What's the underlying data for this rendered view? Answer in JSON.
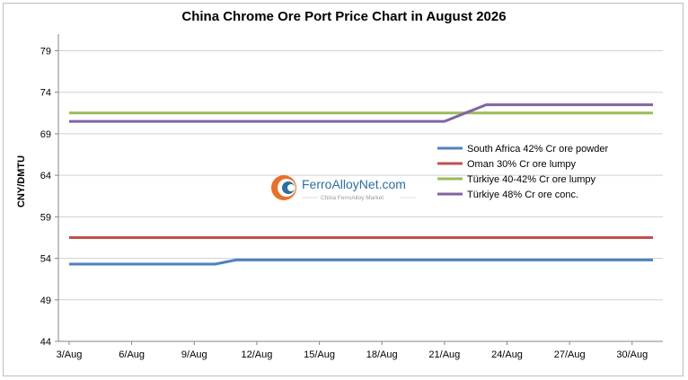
{
  "chart_data": {
    "type": "line",
    "title": "China Chrome Ore Port Price Chart in August 2026",
    "ylabel": "CNY/DMTU",
    "xlabel": "",
    "ylim": [
      44,
      81
    ],
    "yticks": [
      44,
      49,
      54,
      59,
      64,
      69,
      74,
      79
    ],
    "categories": [
      "3/Aug",
      "4/Aug",
      "5/Aug",
      "6/Aug",
      "7/Aug",
      "8/Aug",
      "9/Aug",
      "10/Aug",
      "11/Aug",
      "12/Aug",
      "13/Aug",
      "14/Aug",
      "15/Aug",
      "16/Aug",
      "17/Aug",
      "18/Aug",
      "19/Aug",
      "20/Aug",
      "21/Aug",
      "22/Aug",
      "23/Aug",
      "24/Aug",
      "25/Aug",
      "26/Aug",
      "27/Aug",
      "28/Aug",
      "29/Aug",
      "30/Aug",
      "31/Aug"
    ],
    "xtick_labels": [
      "3/Aug",
      "6/Aug",
      "9/Aug",
      "12/Aug",
      "15/Aug",
      "18/Aug",
      "21/Aug",
      "24/Aug",
      "27/Aug",
      "30/Aug"
    ],
    "grid": true,
    "legend_position": "right",
    "series": [
      {
        "name": "South Africa 42% Cr ore powder",
        "color": "#4f81bd",
        "values": [
          53.3,
          53.3,
          53.3,
          53.3,
          53.3,
          53.3,
          53.3,
          53.3,
          53.8,
          53.8,
          53.8,
          53.8,
          53.8,
          53.8,
          53.8,
          53.8,
          53.8,
          53.8,
          53.8,
          53.8,
          53.8,
          53.8,
          53.8,
          53.8,
          53.8,
          53.8,
          53.8,
          53.8,
          53.8
        ]
      },
      {
        "name": "Oman 30% Cr ore lumpy",
        "color": "#c0504d",
        "values": [
          56.5,
          56.5,
          56.5,
          56.5,
          56.5,
          56.5,
          56.5,
          56.5,
          56.5,
          56.5,
          56.5,
          56.5,
          56.5,
          56.5,
          56.5,
          56.5,
          56.5,
          56.5,
          56.5,
          56.5,
          56.5,
          56.5,
          56.5,
          56.5,
          56.5,
          56.5,
          56.5,
          56.5,
          56.5
        ]
      },
      {
        "name": "Türkiye 40-42% Cr ore lumpy",
        "color": "#9bbb59",
        "values": [
          71.5,
          71.5,
          71.5,
          71.5,
          71.5,
          71.5,
          71.5,
          71.5,
          71.5,
          71.5,
          71.5,
          71.5,
          71.5,
          71.5,
          71.5,
          71.5,
          71.5,
          71.5,
          71.5,
          71.5,
          71.5,
          71.5,
          71.5,
          71.5,
          71.5,
          71.5,
          71.5,
          71.5,
          71.5
        ]
      },
      {
        "name": "Türkiye 48% Cr ore conc.",
        "color": "#8064a2",
        "values": [
          70.5,
          70.5,
          70.5,
          70.5,
          70.5,
          70.5,
          70.5,
          70.5,
          70.5,
          70.5,
          70.5,
          70.5,
          70.5,
          70.5,
          70.5,
          70.5,
          70.5,
          70.5,
          70.5,
          71.5,
          72.5,
          72.5,
          72.5,
          72.5,
          72.5,
          72.5,
          72.5,
          72.5,
          72.5
        ]
      }
    ]
  },
  "watermark": {
    "brand": "FerroAlloyNet.com",
    "tagline": "China FerroAlloy Market",
    "icon": "ferroalloynet-logo-icon"
  }
}
